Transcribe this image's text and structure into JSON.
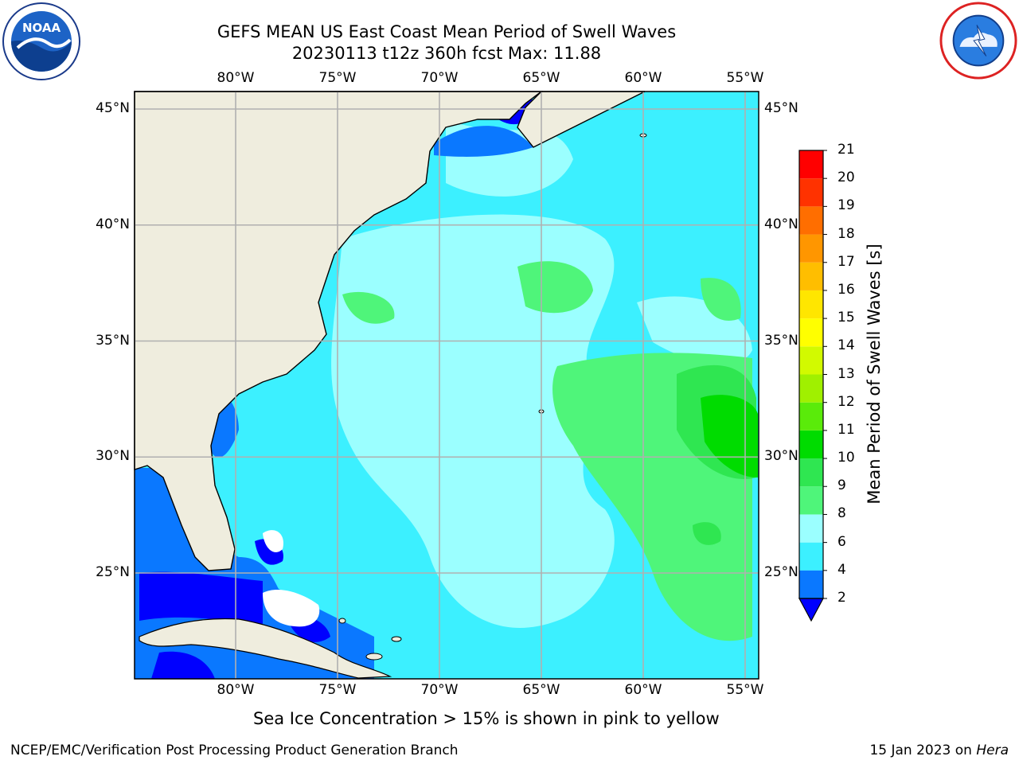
{
  "header": {
    "title_line1": "GEFS MEAN US East Coast Mean Period of Swell Waves",
    "title_line2": "20230113 t12z 360h fcst   Max: 11.88"
  },
  "logos": {
    "left": {
      "name": "noaa-logo",
      "text": "NOAA"
    },
    "right": {
      "name": "nws-logo"
    }
  },
  "map": {
    "lon_ticks": [
      "80°W",
      "75°W",
      "70°W",
      "65°W",
      "60°W",
      "55°W"
    ],
    "lat_ticks": [
      "45°N",
      "40°N",
      "35°N",
      "30°N",
      "25°N"
    ],
    "land_color": "#efedde",
    "grid_color": "#b0b0b0"
  },
  "colorbar": {
    "label": "Mean Period of Swell Waves [s]",
    "ticks": [
      "2",
      "4",
      "6",
      "8",
      "9",
      "10",
      "11",
      "12",
      "13",
      "14",
      "15",
      "16",
      "17",
      "18",
      "19",
      "20",
      "21"
    ],
    "colors": [
      "#0a78ff",
      "#00e6ff",
      "#3cf0ff",
      "#9bffff",
      "#4ff57a",
      "#2fe651",
      "#00dc00",
      "#5aeb0a",
      "#a0f000",
      "#d2fa00",
      "#ffff00",
      "#ffe600",
      "#ffbe00",
      "#ff9600",
      "#ff6e00",
      "#ff3200",
      "#ff0000"
    ],
    "extend_color": "#0000ff"
  },
  "footer": {
    "sea_ice_note": "Sea Ice Concentration > 15% is shown in pink to yellow",
    "credit": "NCEP/EMC/Verification Post Processing Product Generation Branch",
    "date_prefix": "15 Jan 2023 on ",
    "machine": "Hera"
  }
}
